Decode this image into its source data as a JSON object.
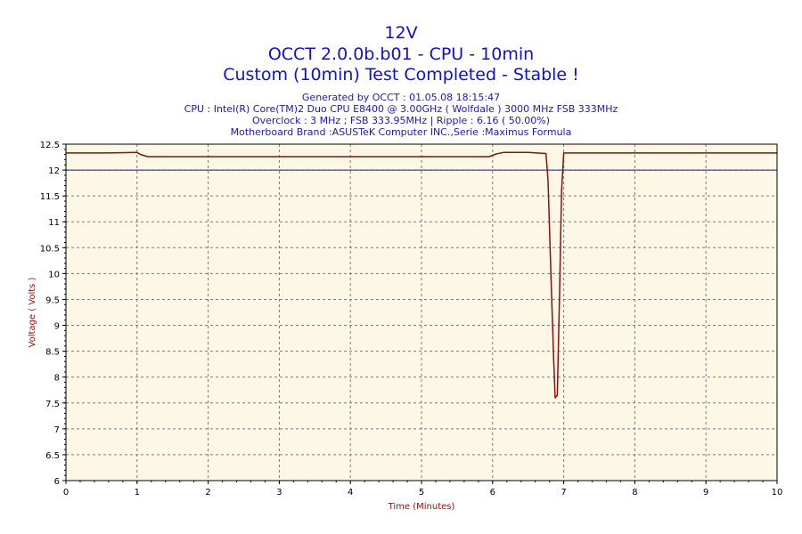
{
  "header": {
    "title": "12V",
    "subtitle": "OCCT 2.0.0b.b01 - CPU - 10min",
    "status": "Custom (10min) Test Completed - Stable !",
    "info": [
      "Generated by OCCT : 01.05.08 18:15:47",
      "CPU : Intel(R) Core(TM)2 Duo CPU E8400 @ 3.00GHz ( Wolfdale ) 3000 MHz FSB 333MHz",
      "Overclock : 3 MHz ; FSB 333.95MHz | Ripple : 6.16 ( 50.00%)",
      "Motherboard Brand :ASUSTeK Computer INC.,Serie :Maximus Formula"
    ]
  },
  "chart_data": {
    "type": "line",
    "title": "12V",
    "xlabel": "Time (Minutes)",
    "ylabel": "Voltage ( Volts )",
    "xlim": [
      0,
      10
    ],
    "ylim": [
      6,
      12.5
    ],
    "x_ticks": [
      "0",
      "1",
      "2",
      "3",
      "4",
      "5",
      "6",
      "7",
      "8",
      "9",
      "10"
    ],
    "y_ticks": [
      "6",
      "6.5",
      "7",
      "7.5",
      "8",
      "8.5",
      "9",
      "9.5",
      "10",
      "10.5",
      "11",
      "11.5",
      "12",
      "12.5"
    ],
    "grid": true,
    "reference_line": {
      "y": 12,
      "color": "#1a1aa6"
    },
    "series": [
      {
        "color": "#8b1010",
        "x": [
          0,
          0.5,
          1.0,
          1.05,
          1.15,
          2,
          3,
          4,
          5,
          5.95,
          6.05,
          6.15,
          6.5,
          6.75,
          6.78,
          6.82,
          6.86,
          6.88,
          6.91,
          6.94,
          6.97,
          7.0,
          8,
          9,
          10
        ],
        "y": [
          12.33,
          12.33,
          12.34,
          12.3,
          12.26,
          12.26,
          12.26,
          12.26,
          12.26,
          12.26,
          12.31,
          12.34,
          12.34,
          12.32,
          11.8,
          10.0,
          8.3,
          7.6,
          7.65,
          9.5,
          11.6,
          12.33,
          12.33,
          12.33,
          12.33
        ]
      }
    ]
  },
  "colors": {
    "plot_background": "#fdf7e6",
    "title": "#1111cc",
    "series": "#8b1010",
    "reference": "#1a1aa6"
  }
}
